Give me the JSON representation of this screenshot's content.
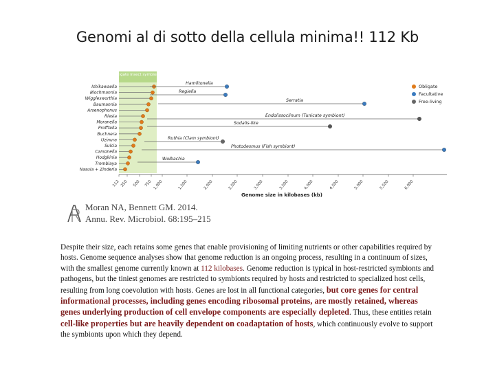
{
  "slide": {
    "title": "Genomi al di sotto della cellula minima!! 112 Kb"
  },
  "figure": {
    "box_title": "Obligate insect symbionts",
    "legend": [
      {
        "label": "Obligate",
        "color": "#e07b1a"
      },
      {
        "label": "Facultative",
        "color": "#3b7bbf"
      },
      {
        "label": "Free-living",
        "color": "#666666"
      }
    ],
    "species": [
      "Ishikawaella",
      "Blochmannia",
      "Wigglesworthia",
      "Baumannia",
      "Arsenophonus",
      "Riesia",
      "Moranella",
      "Profftella",
      "Buchnera",
      "Uzinura",
      "Sulcia",
      "Carsonella",
      "Hodgkinia",
      "Tremblaya",
      "Nasuia + Zinderia"
    ],
    "lineage_labels": [
      "Hamiltonella",
      "Regiella",
      "Serratia",
      "Endolissoclinum (Tunicate symbiont)",
      "Sodalis-like",
      "Ruthia (Clam symbiont)",
      "Photodesmus (Fish symbiont)",
      "Wolbachia"
    ],
    "axis_ticks": [
      "112",
      "250",
      "500",
      "750",
      "1,000",
      "1,500",
      "2,000",
      "2,500",
      "3,000",
      "3,500",
      "4,000",
      "4,500",
      "5,000",
      "5,500",
      "6,000"
    ],
    "xlabel": "Genome size in kilobases (kb)"
  },
  "citation": {
    "line1": "Moran NA, Bennett GM. 2014.",
    "line2": "Annu. Rev. Microbiol. 68:195–215"
  },
  "body": {
    "p1": "Despite their size, each retains some genes that enable provisioning of limiting nutrients or other capabilities required by hosts. Genome sequence analyses show that genome reduction is an ongoing process, resulting in a continuum of sizes, with the smallest genome currently known at ",
    "p1_highlight": "112 kilobases",
    "p2": ". Genome reduction is typical in host-restricted symbionts and pathogens, but the tiniest genomes are restricted to symbionts required by hosts and restricted to specialized host cells, resulting from long coevolution with hosts. Genes are lost in all functional categories, ",
    "p2_highlight": "but core genes for central informational processes, including genes encoding ribosomal proteins, are mostly retained, whereas genes underlying production of cell envelope components are especially depleted",
    "p3": ". Thus, these entities retain ",
    "p3_highlight": "cell-like properties but are heavily dependent on coadaptation of hosts",
    "p4": ", which continuously evolve to support the symbionts upon which they depend."
  }
}
